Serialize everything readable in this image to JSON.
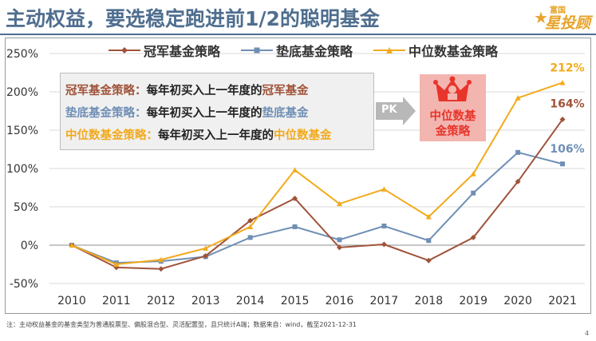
{
  "header": {
    "title": "主动权益，要选稳定跑进前1/2的聪明基金",
    "logo_top": "富国",
    "logo_main": "星投顾"
  },
  "legend": {
    "items": [
      {
        "label": "冠军基金策略",
        "color": "#a0533a",
        "marker": "diamond"
      },
      {
        "label": "垫底基金策略",
        "color": "#6f8fb5",
        "marker": "square"
      },
      {
        "label": "中位数基金策略",
        "color": "#f2aa1c",
        "marker": "triangle"
      }
    ]
  },
  "info_box": {
    "lines": [
      {
        "name": "冠军基金策略：",
        "text": "每年初买入上一年度的",
        "highlight": "冠军基金",
        "color": "#a0533a"
      },
      {
        "name": "垫底基金策略：",
        "text": "每年初买入上一年度的",
        "highlight": "垫底基金",
        "color": "#6f8fb5"
      },
      {
        "name": "中位数基金策略：",
        "text": "每年初买入上一年度的",
        "highlight": "中位数基金",
        "color": "#f2aa1c"
      }
    ]
  },
  "pk_label": "PK",
  "badge": {
    "line1": "中位数基",
    "line2": "金策略"
  },
  "footnote": "注：主动权益基金的基金类型为普通股票型、偏股混合型、灵活配置型，且只统计A端；数据来自：wind，截至2021-12-31",
  "page_number": "4",
  "chart_data": {
    "type": "line",
    "x": [
      "2010",
      "2011",
      "2012",
      "2013",
      "2014",
      "2015",
      "2016",
      "2017",
      "2018",
      "2019",
      "2020",
      "2021"
    ],
    "ylim": [
      -50,
      250
    ],
    "yticks": [
      -50,
      0,
      50,
      100,
      150,
      200,
      250
    ],
    "ytick_labels": [
      "-50%",
      "0%",
      "50%",
      "100%",
      "150%",
      "200%",
      "250%"
    ],
    "grid": true,
    "series": [
      {
        "name": "冠军基金策略",
        "color": "#a0533a",
        "marker": "diamond",
        "values": [
          0,
          -29,
          -31,
          -14,
          32,
          61,
          -3,
          1,
          -20,
          10,
          83,
          164
        ],
        "end_label": "164%"
      },
      {
        "name": "垫底基金策略",
        "color": "#6f8fb5",
        "marker": "square",
        "values": [
          0,
          -23,
          -21,
          -15,
          10,
          24,
          7,
          25,
          6,
          68,
          121,
          106
        ],
        "end_label": "106%"
      },
      {
        "name": "中位数基金策略",
        "color": "#f2aa1c",
        "marker": "triangle",
        "values": [
          0,
          -25,
          -19,
          -4,
          24,
          98,
          54,
          73,
          37,
          93,
          192,
          212
        ],
        "end_label": "212%"
      }
    ]
  }
}
